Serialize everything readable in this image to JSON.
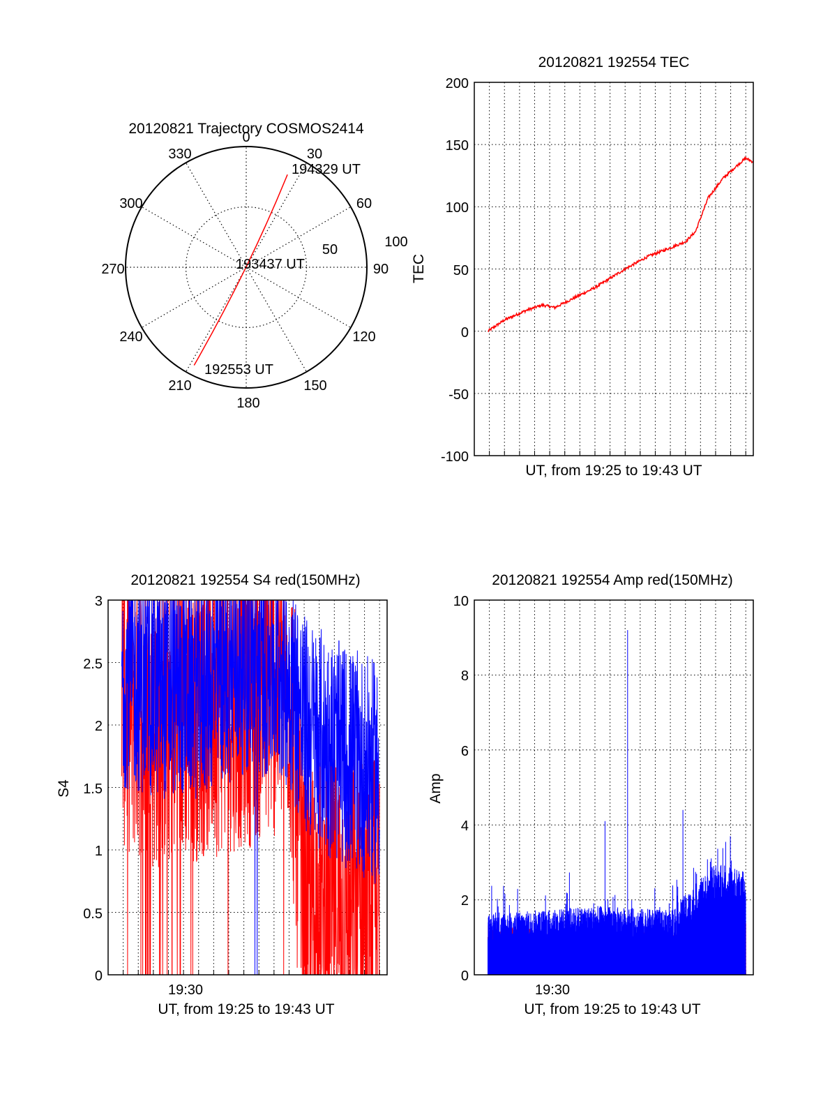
{
  "colors": {
    "red": "#ff0000",
    "blue": "#0000ff",
    "frame": "#000000",
    "grid": "#000000"
  },
  "charts": [
    {
      "id": "trajectory",
      "type": "polar",
      "title": "20120821 Trajectory COSMOS2414",
      "azimuth_labels": [
        "0",
        "30",
        "60",
        "90",
        "120",
        "150",
        "180",
        "210",
        "240",
        "270",
        "300",
        "330"
      ],
      "radial_ring_labels": [
        "50",
        "100"
      ],
      "points_labels": [
        "194329 UT",
        "193437 UT",
        "192553 UT"
      ],
      "grid": true
    },
    {
      "id": "tec",
      "type": "line",
      "title": "20120821 192554 TEC",
      "xlabel": "UT, from 19:25 to 19:43 UT",
      "ylabel": "TEC",
      "ylim": [
        -100,
        200
      ],
      "ytick_labels": [
        "-100",
        "-50",
        "0",
        "50",
        "100",
        "150",
        "200"
      ],
      "grid": true
    },
    {
      "id": "s4",
      "type": "line",
      "title": "20120821 192554 S4 red(150MHz)",
      "xlabel": "UT, from 19:25 to 19:43 UT",
      "ylabel": "S4",
      "ylim": [
        0,
        3
      ],
      "ytick_labels": [
        "0",
        "0.5",
        "1",
        "1.5",
        "2",
        "2.5",
        "3"
      ],
      "xtick_label": "19:30",
      "grid": true
    },
    {
      "id": "amp",
      "type": "line",
      "title": "20120821 192554 Amp red(150MHz)",
      "xlabel": "UT, from 19:25 to 19:43 UT",
      "ylabel": "Amp",
      "ylim": [
        0,
        10
      ],
      "ytick_labels": [
        "0",
        "2",
        "4",
        "6",
        "8",
        "10"
      ],
      "xtick_label": "19:30",
      "grid": true
    }
  ],
  "chart_data": [
    {
      "type": "scatter",
      "title": "20120821 Trajectory COSMOS2414",
      "rlim": [
        0,
        100
      ],
      "series": [
        {
          "color": "red",
          "points": [
            {
              "t": "192553",
              "az": 208,
              "r": 92
            },
            {
              "t": "193437",
              "az": 210,
              "r": 2
            },
            {
              "t": "194329",
              "az": 24,
              "r": 84
            }
          ]
        }
      ]
    },
    {
      "type": "line",
      "title": "20120821 192554 TEC",
      "xlabel": "UT, from 19:25 to 19:43 UT",
      "ylabel": "TEC",
      "xlim": [
        "19:25:00",
        "19:43:30"
      ],
      "ylim": [
        -100,
        200
      ],
      "series": [
        {
          "color": "red",
          "x": [
            "19:25:54",
            "19:27:00",
            "19:28:30",
            "19:29:30",
            "19:30:20",
            "19:31:30",
            "19:33:00",
            "19:35:00",
            "19:36:30",
            "19:38:00",
            "19:39:00",
            "19:39:40",
            "19:40:30",
            "19:41:30",
            "19:42:30",
            "19:43:00",
            "19:43:30"
          ],
          "y": [
            0,
            9,
            17,
            21,
            19,
            26,
            35,
            50,
            60,
            67,
            72,
            80,
            107,
            123,
            134,
            139,
            136
          ]
        }
      ]
    },
    {
      "type": "line",
      "title": "20120821 192554 S4 red(150MHz)",
      "xlabel": "UT, from 19:25 to 19:43 UT",
      "ylabel": "S4",
      "xlim": [
        "19:25:00",
        "19:43:30"
      ],
      "ylim": [
        0,
        3
      ],
      "series": [
        {
          "color": "red",
          "x": [
            "19:25:54",
            "19:28:00",
            "19:31:00",
            "19:34:00",
            "19:37:00",
            "19:38:00",
            "19:40:00",
            "19:43:00"
          ],
          "y": [
            2.3,
            2.1,
            2.2,
            2.3,
            2.4,
            0.4,
            0.5,
            0.5
          ]
        },
        {
          "color": "blue",
          "x": [
            "19:25:54",
            "19:28:00",
            "19:31:00",
            "19:34:00",
            "19:37:00",
            "19:38:00",
            "19:40:00",
            "19:43:00"
          ],
          "y": [
            2.4,
            2.3,
            2.3,
            2.5,
            2.4,
            2.0,
            1.8,
            1.6
          ]
        }
      ]
    },
    {
      "type": "line",
      "title": "20120821 192554 Amp red(150MHz)",
      "xlabel": "UT, from 19:25 to 19:43 UT",
      "ylabel": "Amp",
      "xlim": [
        "19:25:00",
        "19:43:30"
      ],
      "ylim": [
        0,
        10
      ],
      "series": [
        {
          "color": "blue",
          "x": [
            "19:25:54",
            "19:29:00",
            "19:33:00",
            "19:33:40",
            "19:35:10",
            "19:38:00",
            "19:38:50",
            "19:41:00",
            "19:43:00"
          ],
          "y": [
            1.4,
            1.5,
            1.6,
            4.1,
            9.2,
            1.5,
            4.4,
            2.6,
            2.4
          ]
        },
        {
          "color": "red",
          "x": [
            "19:25:54",
            "19:38:00",
            "19:43:00"
          ],
          "y": [
            1.2,
            1.0,
            1.3
          ]
        }
      ]
    }
  ]
}
